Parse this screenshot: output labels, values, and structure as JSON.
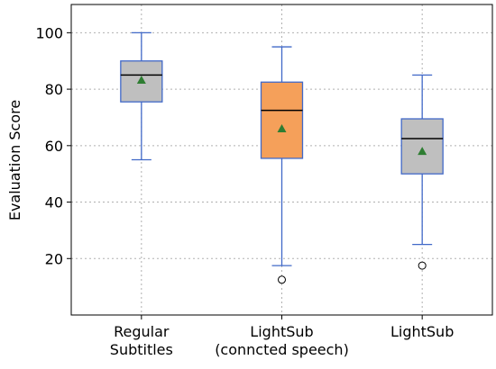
{
  "chart_data": {
    "type": "box",
    "title": "",
    "xlabel": "",
    "ylabel": "Evaluation Score",
    "ylim": [
      0,
      110
    ],
    "yticks": [
      20,
      40,
      60,
      80,
      100
    ],
    "grid": true,
    "categories": [
      [
        "Regular",
        "Subtitles"
      ],
      [
        "LightSub",
        "(conncted speech)"
      ],
      [
        "LightSub"
      ]
    ],
    "boxes": [
      {
        "whisker_low": 55,
        "q1": 75.5,
        "median": 85,
        "q3": 90,
        "whisker_high": 100,
        "mean": 83.2,
        "outliers": [],
        "fill": "#bfbfbf"
      },
      {
        "whisker_low": 17.5,
        "q1": 55.5,
        "median": 72.5,
        "q3": 82.5,
        "whisker_high": 95,
        "mean": 66,
        "outliers": [
          12.5
        ],
        "fill": "#f5a05a"
      },
      {
        "whisker_low": 25,
        "q1": 50,
        "median": 62.5,
        "q3": 69.5,
        "whisker_high": 85,
        "mean": 58,
        "outliers": [
          17.5
        ],
        "fill": "#bfbfbf"
      }
    ],
    "colors": {
      "box_edge": "#4169c8",
      "whisker": "#4169c8",
      "median": "#000000",
      "mean_marker": "#2e7d32",
      "grid": "#b0b0b0"
    }
  }
}
